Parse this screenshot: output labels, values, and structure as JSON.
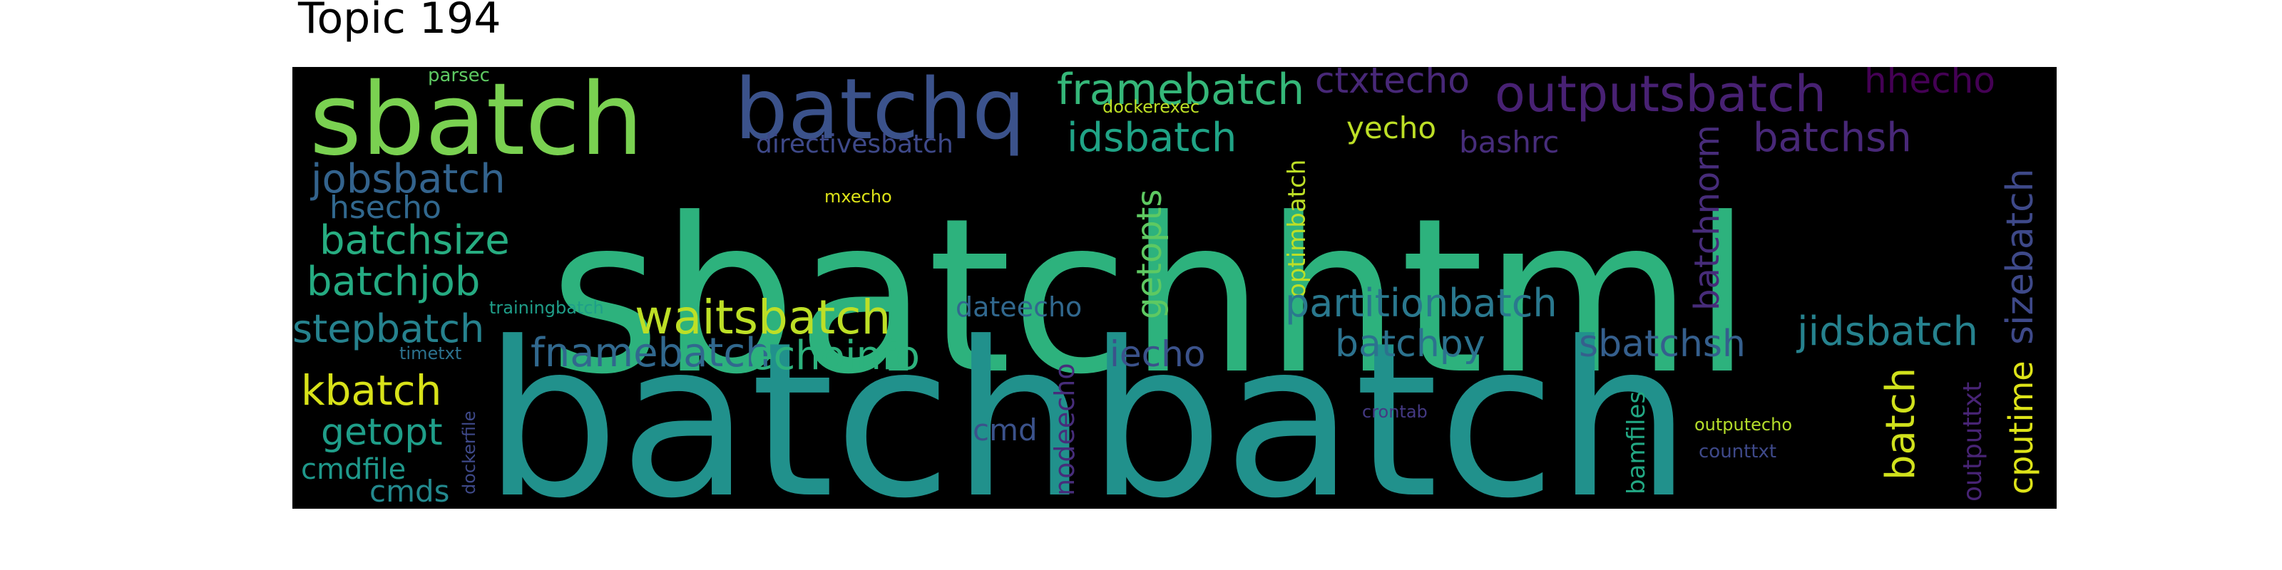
{
  "figure": {
    "title": "Topic 194",
    "background": "#000000"
  },
  "words": [
    {
      "text": "sbatchhtml",
      "color": "#2db27d"
    },
    {
      "text": "batchbatch",
      "color": "#21918c"
    },
    {
      "text": "sbatch",
      "color": "#7ad151"
    },
    {
      "text": "batchq",
      "color": "#3b528b"
    },
    {
      "text": "framebatch",
      "color": "#35b779"
    },
    {
      "text": "ctxtecho",
      "color": "#482878"
    },
    {
      "text": "outputsbatch",
      "color": "#482173"
    },
    {
      "text": "hhecho",
      "color": "#440154"
    },
    {
      "text": "sizebatch",
      "color": "#3e4989"
    },
    {
      "text": "parsec",
      "color": "#5ec962"
    },
    {
      "text": "dockerexec",
      "color": "#bddf26"
    },
    {
      "text": "directivesbatch",
      "color": "#3e4989"
    },
    {
      "text": "idsbatch",
      "color": "#20a486"
    },
    {
      "text": "yecho",
      "color": "#bddf26"
    },
    {
      "text": "bashrc",
      "color": "#472d7b"
    },
    {
      "text": "batchsh",
      "color": "#482878"
    },
    {
      "text": "jobsbatch",
      "color": "#33638d"
    },
    {
      "text": "hsecho",
      "color": "#31688e"
    },
    {
      "text": "mxecho",
      "color": "#dde318"
    },
    {
      "text": "batchsize",
      "color": "#27ad81"
    },
    {
      "text": "batchjob",
      "color": "#25ab82"
    },
    {
      "text": "batchnorm",
      "color": "#472c7a"
    },
    {
      "text": "getopts",
      "color": "#5ec962"
    },
    {
      "text": "optimbatch",
      "color": "#bddf26"
    },
    {
      "text": "stepbatch",
      "color": "#26828e"
    },
    {
      "text": "trainingbatch",
      "color": "#1f9e89"
    },
    {
      "text": "waitsbatch",
      "color": "#bddf26"
    },
    {
      "text": "dateecho",
      "color": "#31688e"
    },
    {
      "text": "partitionbatch",
      "color": "#2a788e"
    },
    {
      "text": "jidsbatch",
      "color": "#26828e"
    },
    {
      "text": "timetxt",
      "color": "#2c728e"
    },
    {
      "text": "fnamebatch",
      "color": "#31688e"
    },
    {
      "text": "echoinfo",
      "color": "#2db27d"
    },
    {
      "text": "iecho",
      "color": "#3b528b"
    },
    {
      "text": "batchpy",
      "color": "#2c728e"
    },
    {
      "text": "sbatchsh",
      "color": "#355f8d"
    },
    {
      "text": "kbatch",
      "color": "#d8e219"
    },
    {
      "text": "dockerfile",
      "color": "#3e4989"
    },
    {
      "text": "getopt",
      "color": "#1f9e89"
    },
    {
      "text": "cmd",
      "color": "#3b528b"
    },
    {
      "text": "nodeecho",
      "color": "#472d7b"
    },
    {
      "text": "crontab",
      "color": "#443983"
    },
    {
      "text": "bamfiles",
      "color": "#22a884"
    },
    {
      "text": "outputecho",
      "color": "#b5de2b"
    },
    {
      "text": "batch",
      "color": "#d0e11c"
    },
    {
      "text": "outputtxt",
      "color": "#482475"
    },
    {
      "text": "cputime",
      "color": "#dde318"
    },
    {
      "text": "cmdfile",
      "color": "#1f988b"
    },
    {
      "text": "cmds",
      "color": "#23898e"
    },
    {
      "text": "counttxt",
      "color": "#3e4989"
    }
  ]
}
